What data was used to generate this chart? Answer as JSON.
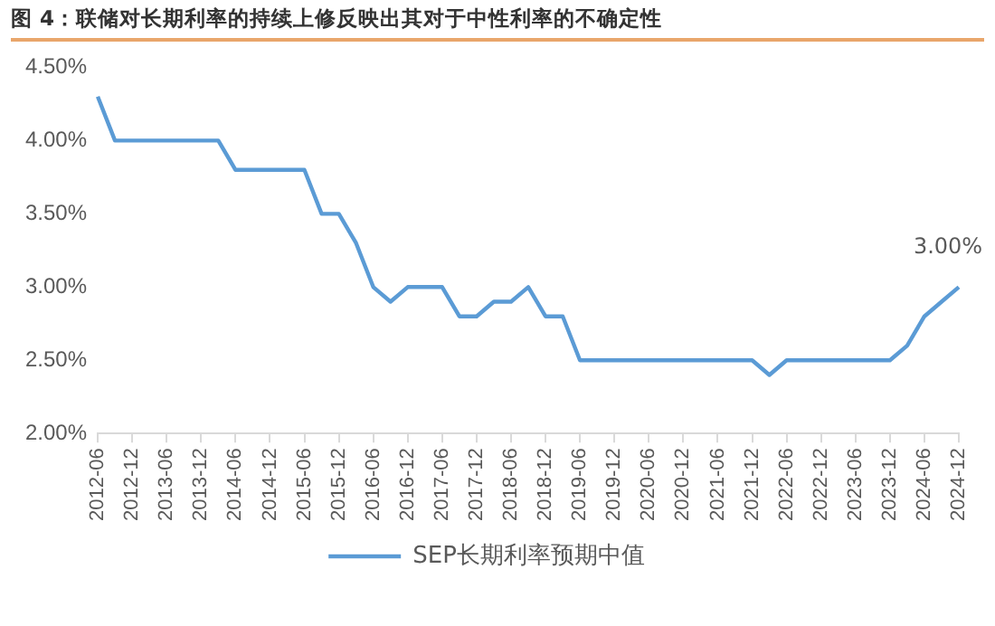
{
  "chart_data": {
    "type": "line",
    "title": "图 4：联储对长期利率的持续上修反映出其对于中性利率的不确定性",
    "categories": [
      "2012-06",
      null,
      "2012-12",
      null,
      "2013-06",
      null,
      "2013-12",
      null,
      "2014-06",
      null,
      "2014-12",
      null,
      "2015-06",
      null,
      "2015-12",
      null,
      "2016-06",
      null,
      "2016-12",
      null,
      "2017-06",
      null,
      "2017-12",
      null,
      "2018-06",
      null,
      "2018-12",
      null,
      "2019-06",
      null,
      "2019-12",
      null,
      "2020-06",
      null,
      "2020-12",
      null,
      "2021-06",
      null,
      "2021-12",
      null,
      "2022-06",
      null,
      "2022-12",
      null,
      "2023-06",
      null,
      "2023-12",
      null,
      "2024-06",
      null,
      "2024-12"
    ],
    "series": [
      {
        "name": "SEP长期利率预期中值",
        "color": "#5b9bd5",
        "values": [
          4.3,
          4.0,
          4.0,
          4.0,
          4.0,
          4.0,
          4.0,
          4.0,
          3.8,
          3.8,
          3.8,
          3.8,
          3.8,
          3.5,
          3.5,
          3.3,
          3.0,
          2.9,
          3.0,
          3.0,
          3.0,
          2.8,
          2.8,
          2.9,
          2.9,
          3.0,
          2.8,
          2.8,
          2.5,
          2.5,
          2.5,
          2.5,
          2.5,
          2.5,
          2.5,
          2.5,
          2.5,
          2.5,
          2.5,
          2.4,
          2.5,
          2.5,
          2.5,
          2.5,
          2.5,
          2.5,
          2.5,
          2.6,
          2.8,
          2.9,
          3.0
        ],
        "value_labels": [
          null,
          null,
          null,
          null,
          null,
          null,
          null,
          null,
          null,
          null,
          null,
          null,
          null,
          null,
          null,
          null,
          null,
          null,
          null,
          null,
          null,
          null,
          null,
          null,
          null,
          null,
          null,
          null,
          null,
          null,
          null,
          null,
          null,
          null,
          null,
          null,
          null,
          null,
          null,
          null,
          null,
          null,
          null,
          null,
          null,
          null,
          null,
          null,
          null,
          null,
          "3.00%"
        ]
      }
    ],
    "ylim": [
      2.0,
      4.5
    ],
    "yticks": [
      {
        "value": 2.0,
        "label": "2.00%"
      },
      {
        "value": 2.5,
        "label": "2.50%"
      },
      {
        "value": 3.0,
        "label": "3.00%"
      },
      {
        "value": 3.5,
        "label": "3.50%"
      },
      {
        "value": 4.0,
        "label": "4.00%"
      },
      {
        "value": 4.5,
        "label": "4.50%"
      }
    ],
    "grid": false,
    "legend": "bottom",
    "marker": "none",
    "line_style": "solid"
  }
}
